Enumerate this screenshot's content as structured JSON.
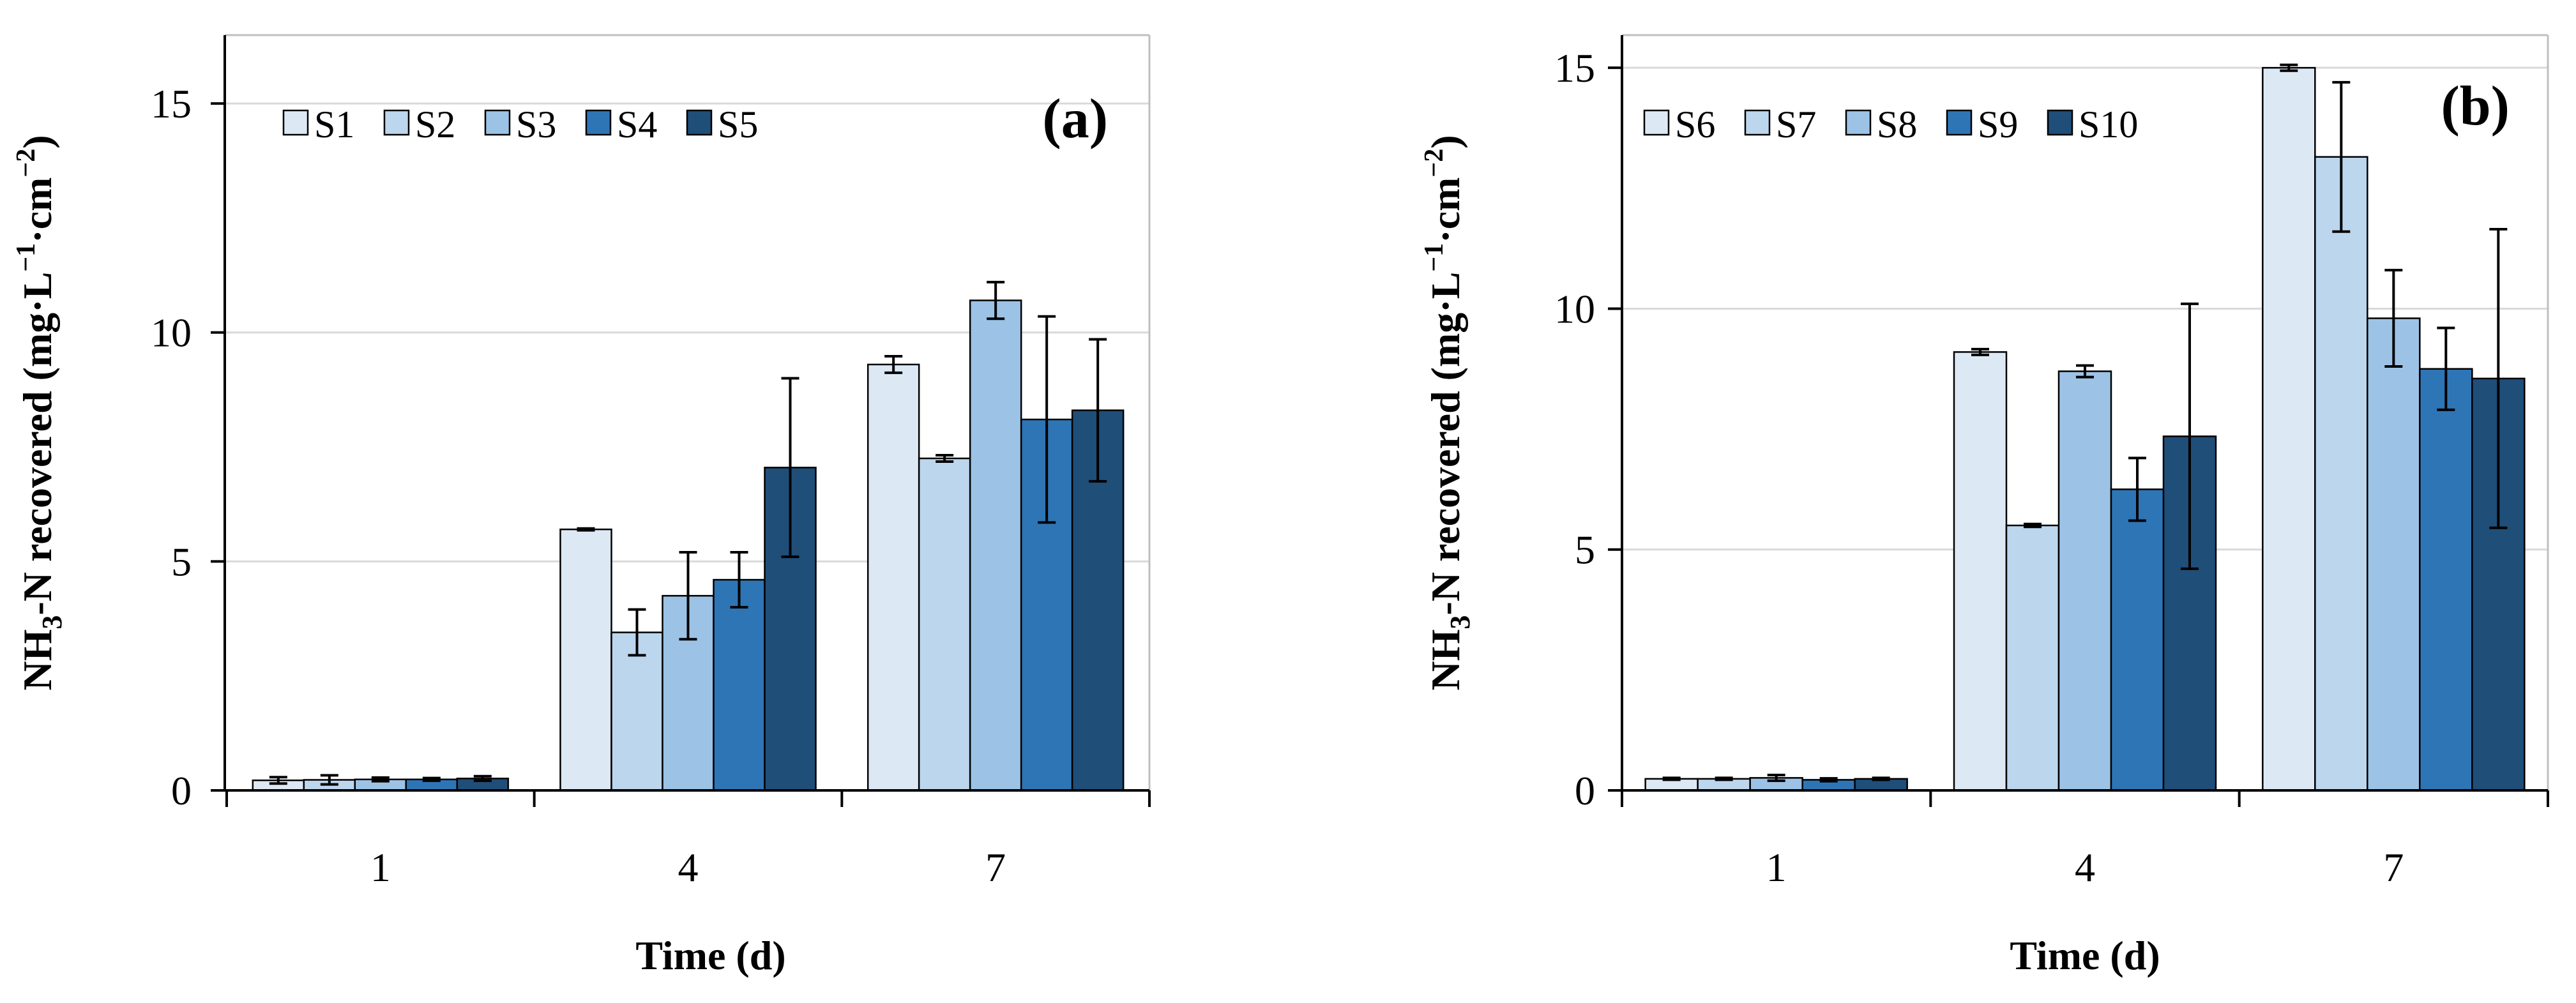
{
  "chart_data": [
    {
      "type": "bar",
      "panel_label": "(a)",
      "categories": [
        "1",
        "4",
        "7"
      ],
      "series": [
        {
          "name": "S1",
          "color": "#dce9f5",
          "values": [
            0.22,
            5.7,
            9.3
          ],
          "errors": [
            0.07,
            0.02,
            0.18
          ]
        },
        {
          "name": "S2",
          "color": "#bcd6ee",
          "values": [
            0.23,
            3.45,
            7.25
          ],
          "errors": [
            0.1,
            0.5,
            0.07
          ]
        },
        {
          "name": "S3",
          "color": "#9cc3e6",
          "values": [
            0.24,
            4.25,
            10.7
          ],
          "errors": [
            0.04,
            0.95,
            0.4
          ]
        },
        {
          "name": "S4",
          "color": "#2e75b6",
          "values": [
            0.24,
            4.6,
            8.1
          ],
          "errors": [
            0.03,
            0.6,
            2.25
          ]
        },
        {
          "name": "S5",
          "color": "#1f4e79",
          "values": [
            0.26,
            7.05,
            8.3
          ],
          "errors": [
            0.05,
            1.95,
            1.55
          ]
        }
      ],
      "y_ticks": [
        "0",
        "5",
        "10",
        "15"
      ],
      "xlabel": "Time (d)",
      "ylabel": {
        "base": "NH",
        "sub": "3",
        "mid": "-N recovered (mg·L",
        "sup1": "−1",
        "dot": "·cm",
        "sup2": "−2",
        "end": ")"
      },
      "ylim": [
        0,
        16.2
      ],
      "gridlines": true,
      "legend_position": "top-left"
    },
    {
      "type": "bar",
      "panel_label": "(b)",
      "categories": [
        "1",
        "4",
        "7"
      ],
      "series": [
        {
          "name": "S6",
          "color": "#dce9f5",
          "values": [
            0.24,
            9.1,
            15.0
          ],
          "errors": [
            0.02,
            0.06,
            0.06
          ]
        },
        {
          "name": "S7",
          "color": "#bcd6ee",
          "values": [
            0.24,
            5.5,
            13.15
          ],
          "errors": [
            0.02,
            0.03,
            1.55
          ]
        },
        {
          "name": "S8",
          "color": "#9cc3e6",
          "values": [
            0.26,
            8.7,
            9.8
          ],
          "errors": [
            0.06,
            0.12,
            1.0
          ]
        },
        {
          "name": "S9",
          "color": "#2e75b6",
          "values": [
            0.22,
            6.25,
            8.75
          ],
          "errors": [
            0.03,
            0.65,
            0.85
          ]
        },
        {
          "name": "S10",
          "color": "#1f4e79",
          "values": [
            0.24,
            7.35,
            8.55
          ],
          "errors": [
            0.02,
            2.75,
            3.1
          ]
        }
      ],
      "y_ticks": [
        "0",
        "5",
        "10",
        "15"
      ],
      "xlabel": "Time (d)",
      "ylabel": {
        "base": "NH",
        "sub": "3",
        "mid": "-N recovered (mg·L",
        "sup1": "−1",
        "dot": "·cm",
        "sup2": "−2",
        "end": ")"
      },
      "ylim": [
        0,
        15.4
      ],
      "gridlines": true,
      "legend_position": "top-left"
    }
  ]
}
